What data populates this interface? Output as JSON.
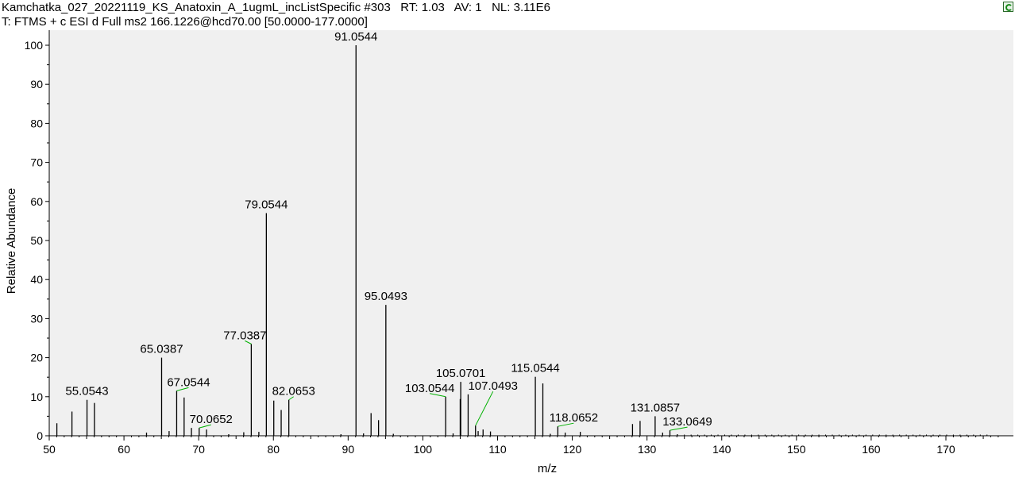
{
  "header": {
    "line1": "Kamchatka_027_20221119_KS_Anatoxin_A_1ugmL_incListSpecific #303   RT: 1.03   AV: 1   NL: 3.11E6",
    "line2": "T: FTMS + c ESI d Full ms2 166.1226@hcd70.00 [50.0000-177.0000]"
  },
  "colors": {
    "plot_bg": "#f0f0f0",
    "line": "#000000",
    "leader": "#00b000"
  },
  "chart_data": {
    "type": "bar",
    "xlabel": "m/z",
    "ylabel": "Relative Abundance",
    "xlim": [
      50,
      177
    ],
    "ylim": [
      0,
      100
    ],
    "xticks": [
      50,
      60,
      70,
      80,
      90,
      100,
      110,
      120,
      130,
      140,
      150,
      160,
      170
    ],
    "yticks": [
      0,
      10,
      20,
      30,
      40,
      50,
      60,
      70,
      80,
      90,
      100
    ],
    "peaks": [
      {
        "mz": 51.02,
        "rel": 3.2
      },
      {
        "mz": 53.04,
        "rel": 6.2
      },
      {
        "mz": 55.0543,
        "rel": 9.2,
        "label": "55.0543"
      },
      {
        "mz": 56.05,
        "rel": 8.4
      },
      {
        "mz": 63.02,
        "rel": 0.8
      },
      {
        "mz": 65.0387,
        "rel": 20.0,
        "label": "65.0387"
      },
      {
        "mz": 66.04,
        "rel": 1.2
      },
      {
        "mz": 67.0544,
        "rel": 11.5,
        "label": "67.0544"
      },
      {
        "mz": 68.05,
        "rel": 9.8
      },
      {
        "mz": 69.03,
        "rel": 2.0
      },
      {
        "mz": 70.0652,
        "rel": 2.0,
        "label": "70.0652"
      },
      {
        "mz": 71.05,
        "rel": 1.6
      },
      {
        "mz": 74.02,
        "rel": 0.4
      },
      {
        "mz": 76.03,
        "rel": 0.9
      },
      {
        "mz": 77.0387,
        "rel": 23.5,
        "label": "77.0387"
      },
      {
        "mz": 78.05,
        "rel": 1.0
      },
      {
        "mz": 79.0544,
        "rel": 57.0,
        "label": "79.0544"
      },
      {
        "mz": 80.05,
        "rel": 9.0
      },
      {
        "mz": 81.04,
        "rel": 6.6
      },
      {
        "mz": 82.0653,
        "rel": 9.2,
        "label": "82.0653"
      },
      {
        "mz": 89.04,
        "rel": 0.4
      },
      {
        "mz": 91.0544,
        "rel": 100.0,
        "label": "91.0544"
      },
      {
        "mz": 92.06,
        "rel": 0.6
      },
      {
        "mz": 93.07,
        "rel": 5.8
      },
      {
        "mz": 94.07,
        "rel": 4.0
      },
      {
        "mz": 95.0493,
        "rel": 33.5,
        "label": "95.0493"
      },
      {
        "mz": 96.05,
        "rel": 0.5
      },
      {
        "mz": 103.0544,
        "rel": 10.0,
        "label": "103.0544"
      },
      {
        "mz": 104.05,
        "rel": 0.6
      },
      {
        "mz": 105.0,
        "rel": 9.4
      },
      {
        "mz": 105.0701,
        "rel": 13.8,
        "label": "105.0701"
      },
      {
        "mz": 106.06,
        "rel": 10.6
      },
      {
        "mz": 107.0493,
        "rel": 2.6,
        "label": "107.0493"
      },
      {
        "mz": 107.4,
        "rel": 1.2
      },
      {
        "mz": 108.06,
        "rel": 1.6
      },
      {
        "mz": 109.05,
        "rel": 1.1
      },
      {
        "mz": 115.0544,
        "rel": 15.1,
        "label": "115.0544"
      },
      {
        "mz": 116.06,
        "rel": 13.4
      },
      {
        "mz": 117.06,
        "rel": 0.5
      },
      {
        "mz": 118.0652,
        "rel": 2.4,
        "label": "118.0652"
      },
      {
        "mz": 119.05,
        "rel": 0.8
      },
      {
        "mz": 121.07,
        "rel": 1.0
      },
      {
        "mz": 128.06,
        "rel": 3.0
      },
      {
        "mz": 129.07,
        "rel": 3.8
      },
      {
        "mz": 131.0857,
        "rel": 5.0,
        "label": "131.0857"
      },
      {
        "mz": 132.09,
        "rel": 0.8
      },
      {
        "mz": 133.0649,
        "rel": 1.4,
        "label": "133.0649"
      },
      {
        "mz": 134.06,
        "rel": 0.4
      }
    ]
  }
}
